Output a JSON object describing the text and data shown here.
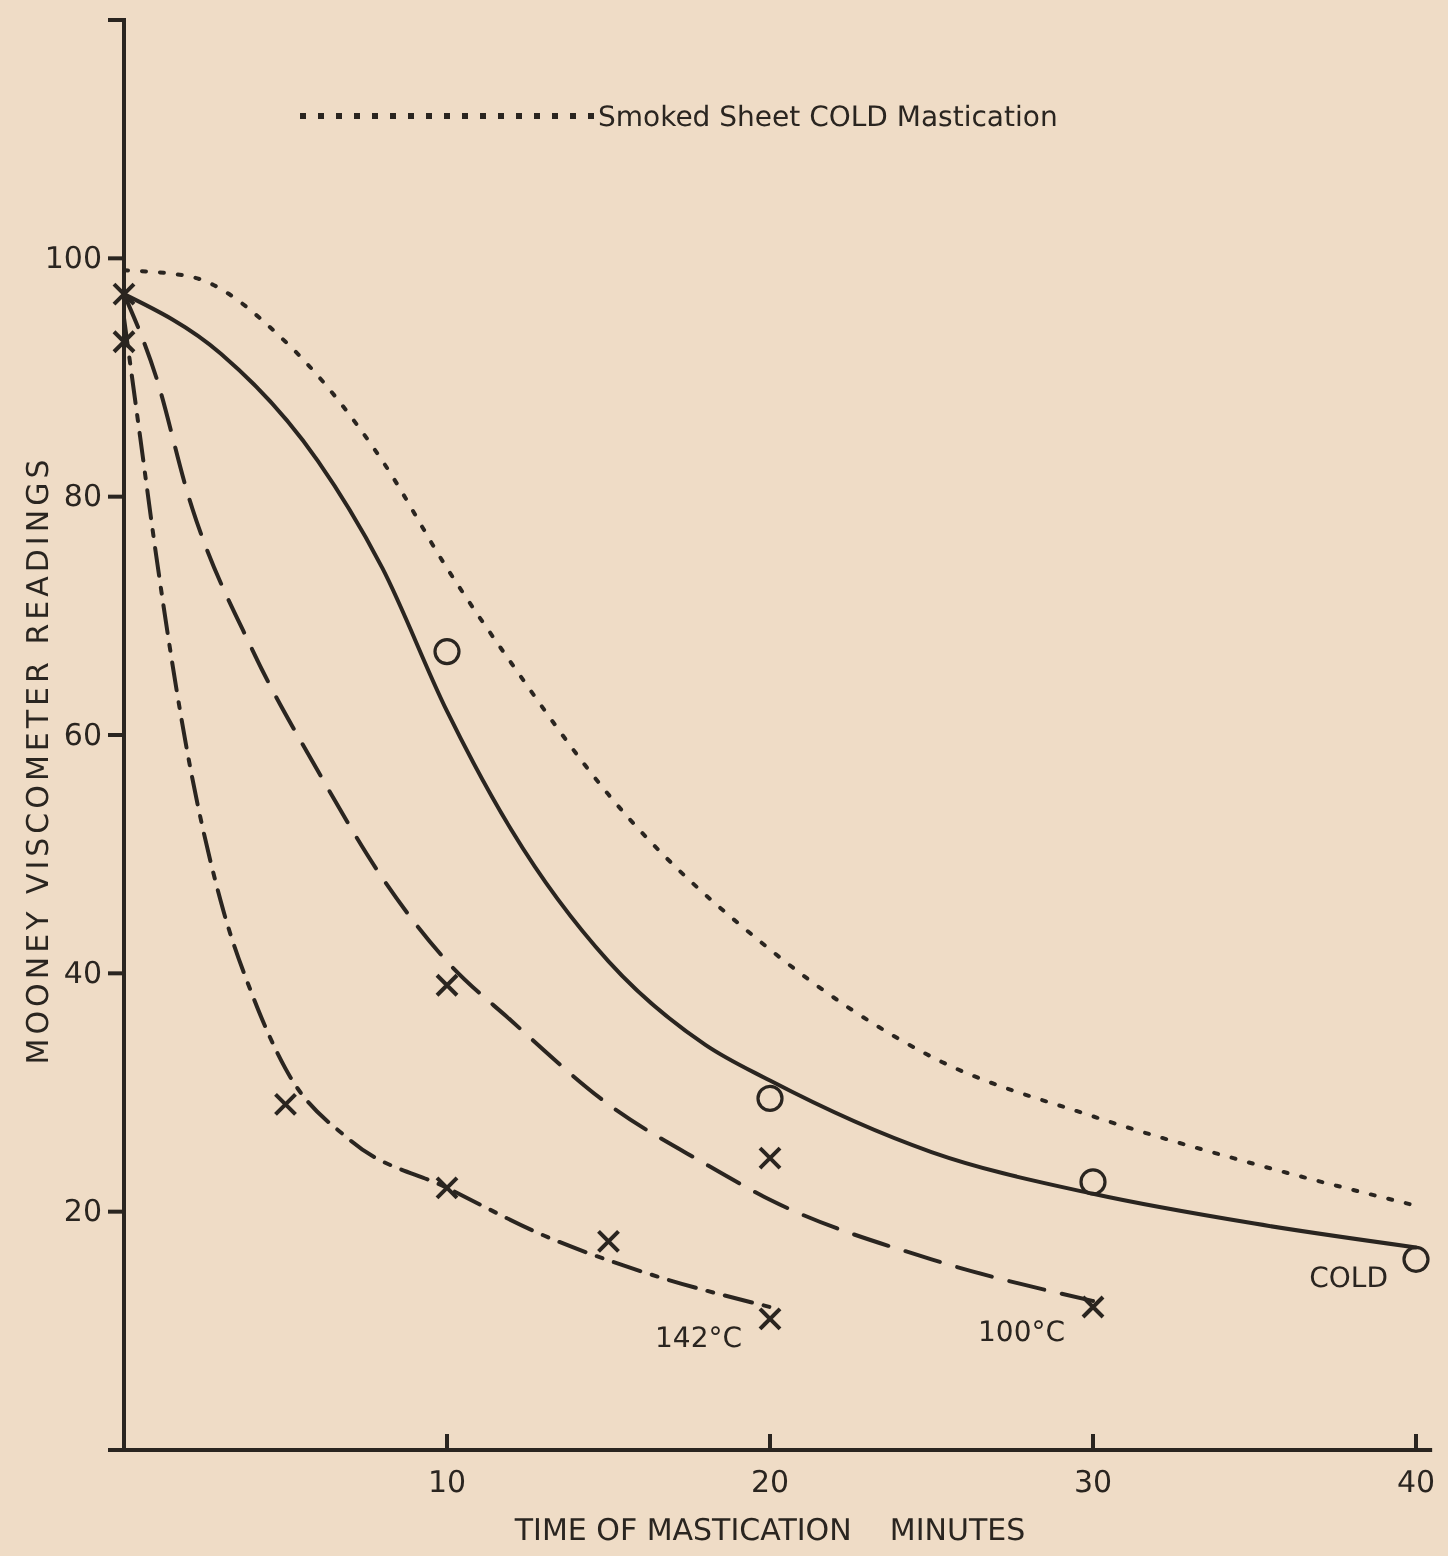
{
  "chart_data": {
    "type": "line",
    "xlabel": "TIME OF MASTICATION    MINUTES",
    "ylabel": "MOONEY VISCOMETER READINGS",
    "xlim": [
      0,
      40.5
    ],
    "ylim": [
      0,
      120
    ],
    "xticks": [
      10,
      20,
      30,
      40
    ],
    "yticks": [
      20,
      40,
      60,
      80,
      100
    ],
    "grid": false,
    "legend": "top",
    "series": [
      {
        "name": "Smoked Sheet COLD Mastication",
        "color": "#2a2520",
        "line_style": "dotted",
        "x": [
          0,
          2,
          5,
          8,
          10,
          12,
          15,
          20,
          25,
          30,
          35,
          40
        ],
        "values": [
          99,
          98.5,
          93,
          83,
          74,
          66,
          55,
          42,
          33,
          28,
          24,
          20.5
        ]
      },
      {
        "name": "COLD",
        "color": "#2a2520",
        "line_style": "solid",
        "x": [
          0,
          3,
          6,
          8,
          10,
          12,
          15,
          18,
          20,
          25,
          30,
          35,
          40
        ],
        "values": [
          97,
          92,
          83,
          74,
          62,
          52,
          41,
          34,
          31,
          25,
          21.5,
          19,
          17
        ]
      },
      {
        "name": "100°C",
        "color": "#2a2520",
        "line_style": "dashed",
        "x": [
          0,
          1,
          2,
          4,
          6,
          8,
          10,
          12,
          15,
          18,
          20,
          25,
          30
        ],
        "values": [
          97,
          90,
          80,
          67,
          57,
          48,
          41,
          36,
          29,
          24,
          21,
          16,
          12.5
        ]
      },
      {
        "name": "142°C",
        "color": "#2a2520",
        "line_style": "dashdot",
        "x": [
          0,
          0.5,
          1,
          2,
          3,
          4,
          5,
          7,
          10,
          13,
          16,
          20
        ],
        "values": [
          95,
          85,
          75,
          58,
          46,
          38,
          32,
          26,
          22,
          18,
          15,
          12
        ]
      },
      {
        "type": "scatter",
        "color": "#2a2520",
        "marker": "circle",
        "x": [
          10,
          20,
          30,
          40
        ],
        "values": [
          67,
          29.5,
          22.5,
          16
        ]
      },
      {
        "type": "scatter",
        "color": "#2a2520",
        "marker": "cross",
        "x": [
          0,
          10,
          20,
          30
        ],
        "values": [
          97,
          39,
          24.5,
          12
        ]
      },
      {
        "type": "scatter",
        "color": "#2a2520",
        "marker": "cross",
        "x": [
          0,
          5,
          10,
          15,
          20
        ],
        "values": [
          93,
          29,
          22,
          17.5,
          11
        ]
      }
    ]
  }
}
